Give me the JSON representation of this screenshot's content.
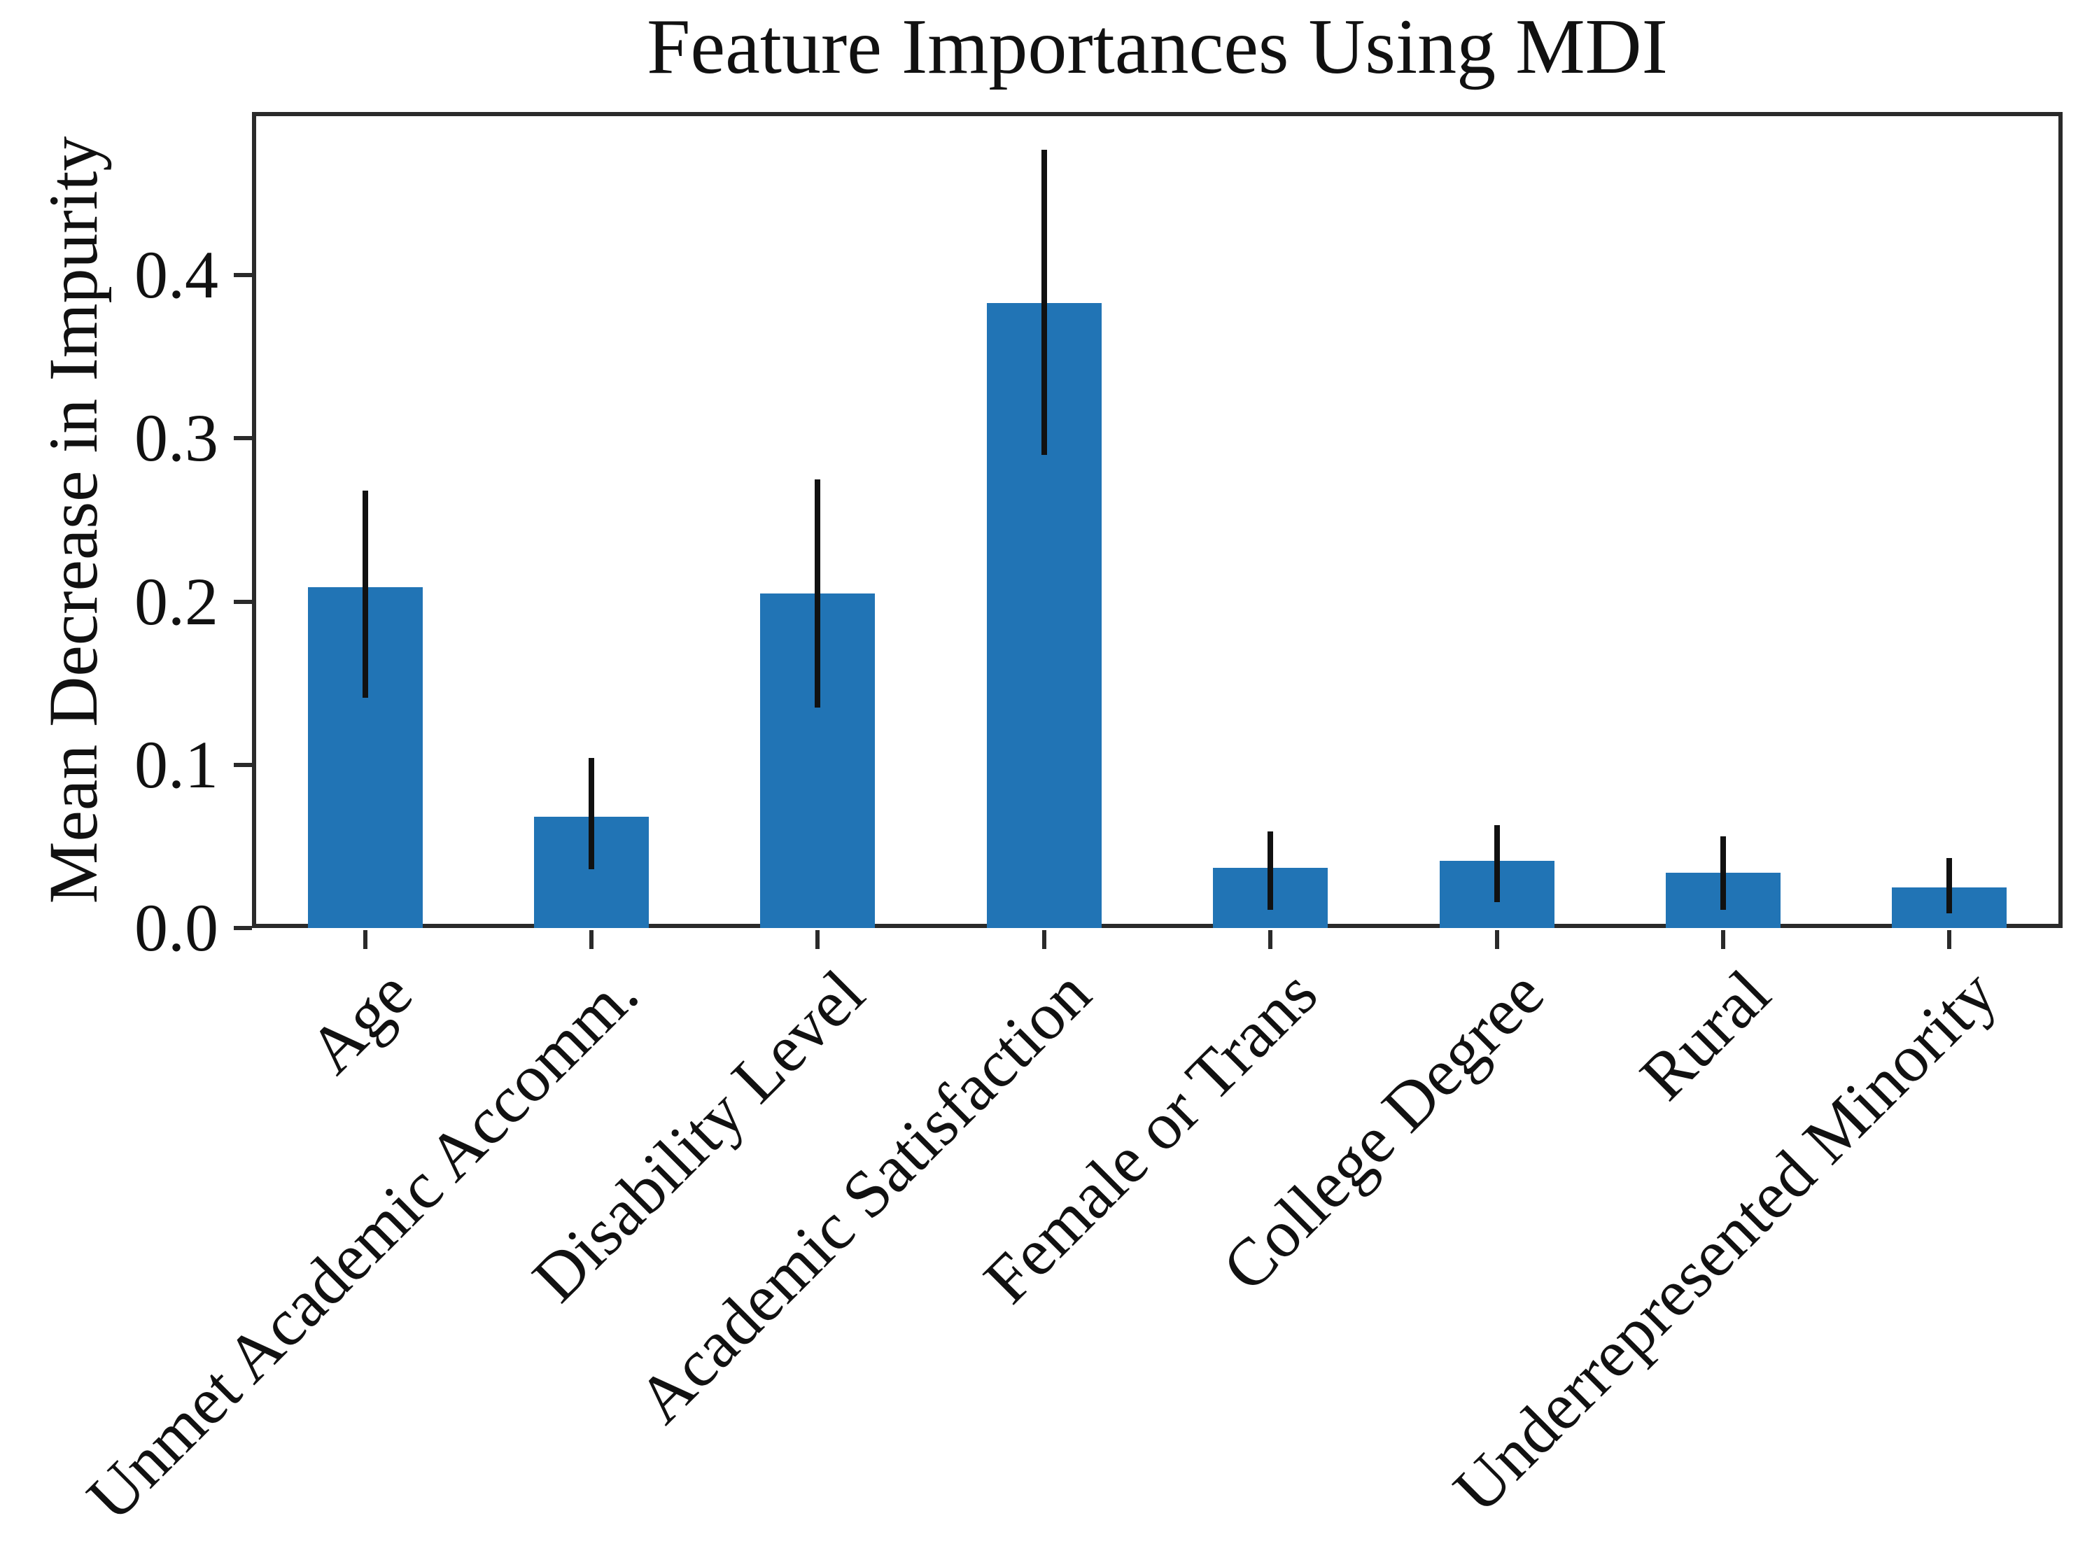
{
  "chart_data": {
    "type": "bar",
    "title": "Feature Importances Using MDI",
    "ylabel": "Mean Decrease in Impurity",
    "xlabel": "",
    "categories": [
      "Age",
      "Unmet Academic Accomm.",
      "Disability Level",
      "Academic Satisfaction",
      "Female or Trans",
      "College Degree",
      "Rural",
      "Underrepresented Minority"
    ],
    "values": [
      0.209,
      0.068,
      0.205,
      0.383,
      0.037,
      0.041,
      0.034,
      0.025
    ],
    "error_low": [
      0.141,
      0.036,
      0.135,
      0.29,
      0.011,
      0.016,
      0.011,
      0.009
    ],
    "error_high": [
      0.268,
      0.104,
      0.275,
      0.477,
      0.059,
      0.063,
      0.056,
      0.043
    ],
    "yticks": [
      0.0,
      0.1,
      0.2,
      0.3,
      0.4
    ],
    "ytick_labels": [
      "0.0",
      "0.1",
      "0.2",
      "0.3",
      "0.4"
    ],
    "ylim": [
      0,
      0.5
    ],
    "xtick_rotation_deg": 45,
    "grid": false,
    "legend": null,
    "bar_color": "#2174b5",
    "error_color": "#111111",
    "axis_color": "#2a2a2a",
    "text_color": "#111111",
    "background": "#ffffff"
  }
}
